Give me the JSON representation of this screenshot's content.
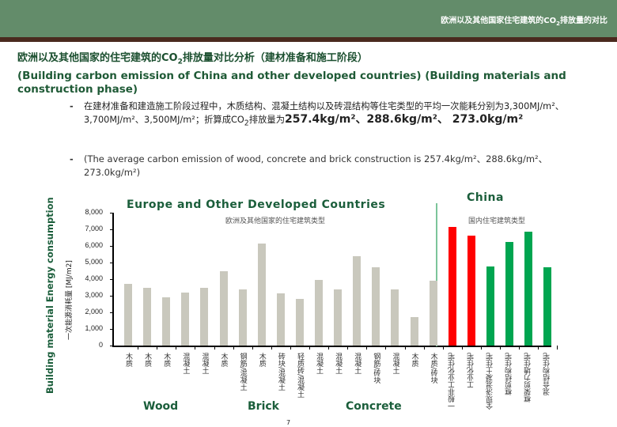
{
  "header": {
    "title_pre": "欧洲以及其他国家住宅建筑的CO",
    "title_sub": "2",
    "title_post": "排放量的对比",
    "bg_color": "#638c6a",
    "stripe_color": "#4a2a1f"
  },
  "title": {
    "cn_pre": "欧洲以及其他国家的住宅建筑的CO",
    "cn_sub": "2",
    "cn_post": "排放量对比分析（建材准备和施工阶段）",
    "en": "(Building carbon emission of China and other developed countries) (Building materials and construction phase)"
  },
  "bullets": [
    {
      "dash": "-",
      "text_pre": "在建材准备和建造施工阶段过程中，木质结构、混凝土结构以及砖混结构等住宅类型的平均一次能耗分别为3,300MJ/m²、3,700MJ/m²、3,500MJ/m²；折算成CO",
      "text_sub": "2",
      "text_mid": "排放量为",
      "text_bold": "257.4kg/m²、288.6kg/m²、 273.0kg/m²"
    },
    {
      "dash": "-",
      "text": "(The average carbon emission of wood, concrete and brick construction is 257.4kg/m²、288.6kg/m²、 273.0kg/m²)"
    }
  ],
  "chart_data": {
    "type": "bar",
    "title": "Europe and Other Developed Countries / China",
    "panels": [
      {
        "title": "Europe and Other Developed Countries",
        "subtitle": "欧洲及其他国家的住宅建筑类型"
      },
      {
        "title": "China",
        "subtitle": "国内住宅建筑类型"
      }
    ],
    "ylabel": "Building material Energy consumption",
    "ylabel_inner": "一次能源消耗量 [MJ/m2]",
    "yticks": [
      "0",
      "1,000",
      "2,000",
      "3,000",
      "4,000",
      "5,000",
      "6,000",
      "7,000",
      "8,000"
    ],
    "ylim": [
      0,
      8000
    ],
    "grid": false,
    "categories": [
      "木质",
      "木质",
      "木质",
      "混凝土",
      "混凝土",
      "木质",
      "钢筋/混凝土",
      "木质",
      "砖块/混凝土",
      "轻质砖/混凝土",
      "混凝土",
      "混凝土",
      "混凝土",
      "钢筋/砖块",
      "混凝土",
      "木质",
      "木质/砖块",
      "一般非工业化住宅",
      "工业化住宅",
      "全现浇混凝土住宅",
      "框剪结构住宅",
      "框架剪力墙住宅",
      "混合结构住宅"
    ],
    "values": [
      3700,
      3500,
      2900,
      3200,
      3500,
      4500,
      3400,
      6150,
      3150,
      2800,
      3950,
      3400,
      5400,
      4700,
      3400,
      1700,
      3900,
      7150,
      6600,
      4750,
      6250,
      6850,
      4700
    ],
    "colors": [
      "#c9c8bd",
      "#c9c8bd",
      "#c9c8bd",
      "#c9c8bd",
      "#c9c8bd",
      "#c9c8bd",
      "#c9c8bd",
      "#c9c8bd",
      "#c9c8bd",
      "#c9c8bd",
      "#c9c8bd",
      "#c9c8bd",
      "#c9c8bd",
      "#c9c8bd",
      "#c9c8bd",
      "#c9c8bd",
      "#c9c8bd",
      "#ff0000",
      "#ff0000",
      "#00a550",
      "#00a550",
      "#00a550",
      "#00a550"
    ],
    "groups": [
      "Wood",
      "Brick",
      "Concrete"
    ]
  },
  "page_number": "7"
}
